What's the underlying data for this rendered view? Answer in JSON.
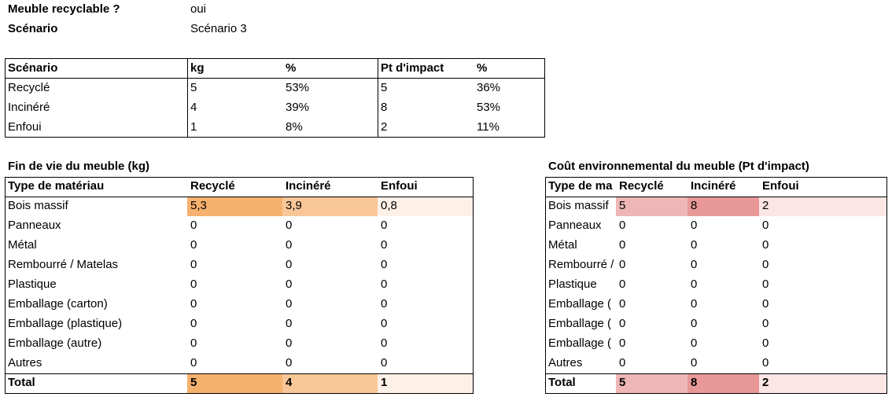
{
  "header": {
    "recyclable_label": "Meuble recyclable ?",
    "recyclable_value": "oui",
    "scenario_label": "Scénario",
    "scenario_value": "Scénario 3"
  },
  "summary": {
    "columns": [
      "Scénario",
      "kg",
      "%",
      "Pt d'impact",
      "%"
    ],
    "rows": [
      [
        "Recyclé",
        "5",
        "53%",
        "5",
        "36%"
      ],
      [
        "Incinéré",
        "4",
        "39%",
        "8",
        "53%"
      ],
      [
        "Enfoui",
        "1",
        "8%",
        "2",
        "11%"
      ]
    ]
  },
  "left_table": {
    "title": "Fin de vie du meuble (kg)",
    "columns": [
      "Type de matériau",
      "Recyclé",
      "Incinéré",
      "Enfoui"
    ],
    "rows": [
      [
        "Bois massif",
        "5,3",
        "3,9",
        "0,8"
      ],
      [
        "Panneaux",
        "0",
        "0",
        "0"
      ],
      [
        "Métal",
        "0",
        "0",
        "0"
      ],
      [
        "Rembourré / Matelas",
        "0",
        "0",
        "0"
      ],
      [
        "Plastique",
        "0",
        "0",
        "0"
      ],
      [
        "Emballage (carton)",
        "0",
        "0",
        "0"
      ],
      [
        "Emballage (plastique)",
        "0",
        "0",
        "0"
      ],
      [
        "Emballage (autre)",
        "0",
        "0",
        "0"
      ],
      [
        "Autres",
        "0",
        "0",
        "0"
      ]
    ],
    "total": [
      "Total",
      "5",
      "4",
      "1"
    ],
    "colors": {
      "recycle": "#f6b16e",
      "incinere": "#f9c797",
      "enfoui": "#fdf0e6"
    }
  },
  "right_table": {
    "title": "Coût environnemental du meuble (Pt d'impact)",
    "columns": [
      "Type de ma",
      "Recyclé",
      "Incinéré",
      "Enfoui"
    ],
    "rows": [
      [
        "Bois massif",
        "5",
        "8",
        "2"
      ],
      [
        "Panneaux",
        "0",
        "0",
        "0"
      ],
      [
        "Métal",
        "0",
        "0",
        "0"
      ],
      [
        "Rembourré /",
        "0",
        "0",
        "0"
      ],
      [
        "Plastique",
        "0",
        "0",
        "0"
      ],
      [
        "Emballage (",
        "0",
        "0",
        "0"
      ],
      [
        "Emballage (",
        "0",
        "0",
        "0"
      ],
      [
        "Emballage (",
        "0",
        "0",
        "0"
      ],
      [
        "Autres",
        "0",
        "0",
        "0"
      ]
    ],
    "total": [
      "Total",
      "5",
      "8",
      "2"
    ],
    "colors": {
      "recycle": "#efb6b6",
      "incinere": "#e99898",
      "enfoui": "#fbe5e5"
    }
  }
}
